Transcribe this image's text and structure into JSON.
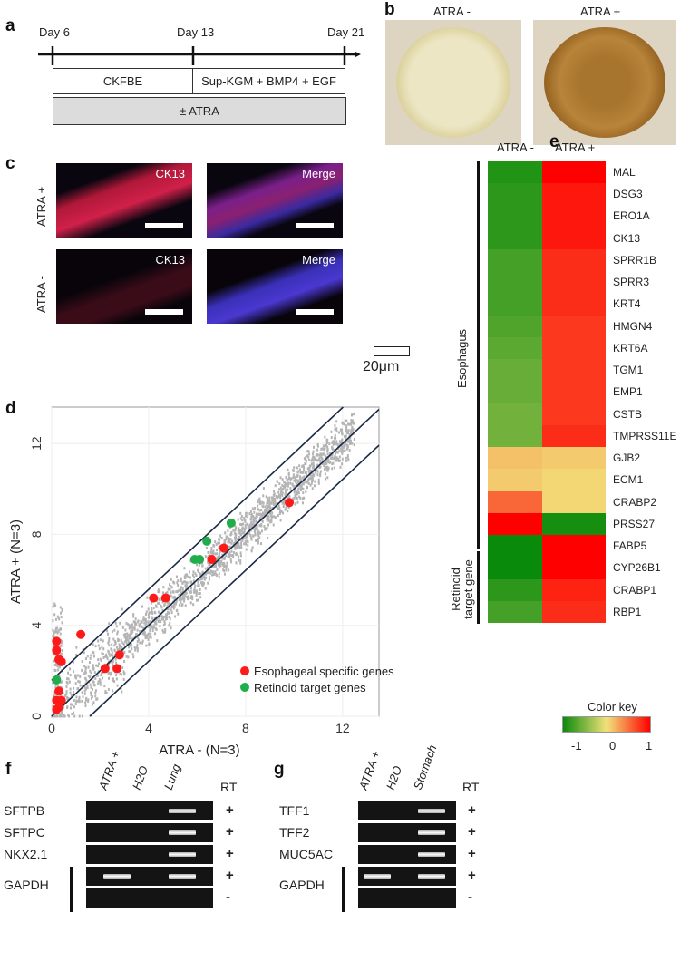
{
  "panels": {
    "a": "a",
    "b": "b",
    "c": "c",
    "d": "d",
    "e": "e",
    "f": "f",
    "g": "g"
  },
  "timeline": {
    "days": [
      "Day 6",
      "Day 13",
      "Day 21"
    ],
    "stage1": "CKFBE",
    "stage2": "Sup-KGM + BMP4 + EGF",
    "treatment": "± ATRA"
  },
  "dishes": {
    "minus": "ATRA -",
    "plus": "ATRA +"
  },
  "micro": {
    "row_plus": "ATRA +",
    "row_minus": "ATRA -",
    "ck13": "CK13",
    "merge": "Merge",
    "scale": "20μm"
  },
  "chart_data": {
    "type": "scatter",
    "xlabel": "ATRA -  (N=3)",
    "ylabel": "ATRA +  (N=3)",
    "xlim": [
      0,
      13.5
    ],
    "ylim": [
      0,
      13.6
    ],
    "xticks": [
      "0",
      "4",
      "8",
      "12"
    ],
    "yticks": [
      "0",
      "4",
      "8",
      "12"
    ],
    "reference_lines": [
      "y = x + 1.58",
      "y = x",
      "y = x - 1.58"
    ],
    "legend": {
      "placement": "bottom-right",
      "entries": [
        "Esophageal specific genes",
        "Retinoid target genes"
      ]
    },
    "series": [
      {
        "name": "Esophageal specific genes",
        "color": "#ff1a1a",
        "points": [
          [
            9.8,
            9.4
          ],
          [
            7.1,
            7.4
          ],
          [
            6.6,
            6.9
          ],
          [
            4.2,
            5.2
          ],
          [
            4.7,
            5.2
          ],
          [
            1.2,
            3.6
          ],
          [
            0.2,
            3.3
          ],
          [
            0.2,
            2.9
          ],
          [
            0.3,
            2.5
          ],
          [
            0.4,
            2.4
          ],
          [
            2.2,
            2.1
          ],
          [
            2.8,
            2.7
          ],
          [
            2.7,
            2.1
          ],
          [
            0.3,
            1.1
          ],
          [
            0.2,
            0.7
          ],
          [
            0.4,
            0.7
          ],
          [
            0.2,
            0.3
          ],
          [
            0.3,
            0.4
          ]
        ]
      },
      {
        "name": "Retinoid target genes",
        "color": "#1fae4a",
        "points": [
          [
            7.4,
            8.5
          ],
          [
            6.4,
            7.7
          ],
          [
            5.9,
            6.9
          ],
          [
            6.1,
            6.9
          ],
          [
            0.2,
            1.6
          ]
        ]
      },
      {
        "name": "All probes",
        "color": "#b4b4b4",
        "points": "dense cloud along y=x"
      }
    ]
  },
  "heatmap": {
    "columns": [
      "ATRA -",
      "ATRA +"
    ],
    "groups": [
      {
        "name": "Esophagus",
        "rows": 17
      },
      {
        "name": "Retinoid target gene",
        "rows": 4
      }
    ],
    "genes": [
      "MAL",
      "DSG3",
      "ERO1A",
      "CK13",
      "SPRR1B",
      "SPRR3",
      "KRT4",
      "HMGN4",
      "KRT6A",
      "TGM1",
      "EMP1",
      "CSTB",
      "TMPRSS11E",
      "GJB2",
      "ECM1",
      "CRABP2",
      "PRSS27",
      "FABP5",
      "CYP26B1",
      "CRABP1",
      "RBP1"
    ],
    "values": [
      [
        -0.9,
        1
      ],
      [
        -0.85,
        0.9
      ],
      [
        -0.85,
        0.9
      ],
      [
        -0.85,
        0.9
      ],
      [
        -0.75,
        0.8
      ],
      [
        -0.75,
        0.8
      ],
      [
        -0.75,
        0.8
      ],
      [
        -0.7,
        0.75
      ],
      [
        -0.65,
        0.75
      ],
      [
        -0.6,
        0.75
      ],
      [
        -0.6,
        0.75
      ],
      [
        -0.55,
        0.75
      ],
      [
        -0.55,
        0.8
      ],
      [
        0.15,
        0.1
      ],
      [
        0.1,
        0.05
      ],
      [
        0.55,
        0.05
      ],
      [
        1,
        -0.95
      ],
      [
        -1,
        1
      ],
      [
        -1,
        1
      ],
      [
        -0.85,
        0.85
      ],
      [
        -0.75,
        0.8
      ]
    ],
    "key_title": "Color key",
    "key_ticks": [
      "-1",
      "0",
      "1"
    ]
  },
  "gel_f": {
    "columns": [
      "ATRA +",
      "H2O",
      "Lung"
    ],
    "rt_header": "RT",
    "rows": [
      {
        "gene": "SFTPB",
        "rt": "+"
      },
      {
        "gene": "SFTPC",
        "rt": "+"
      },
      {
        "gene": "NKX2.1",
        "rt": "+"
      },
      {
        "gene": "GAPDH",
        "rt": "+"
      },
      {
        "gene": "",
        "rt": "-"
      }
    ]
  },
  "gel_g": {
    "columns": [
      "ATRA +",
      "H2O",
      "Stomach"
    ],
    "rt_header": "RT",
    "rows": [
      {
        "gene": "TFF1",
        "rt": "+"
      },
      {
        "gene": "TFF2",
        "rt": "+"
      },
      {
        "gene": "MUC5AC",
        "rt": "+"
      },
      {
        "gene": "GAPDH",
        "rt": "+"
      },
      {
        "gene": "",
        "rt": "-"
      }
    ]
  }
}
